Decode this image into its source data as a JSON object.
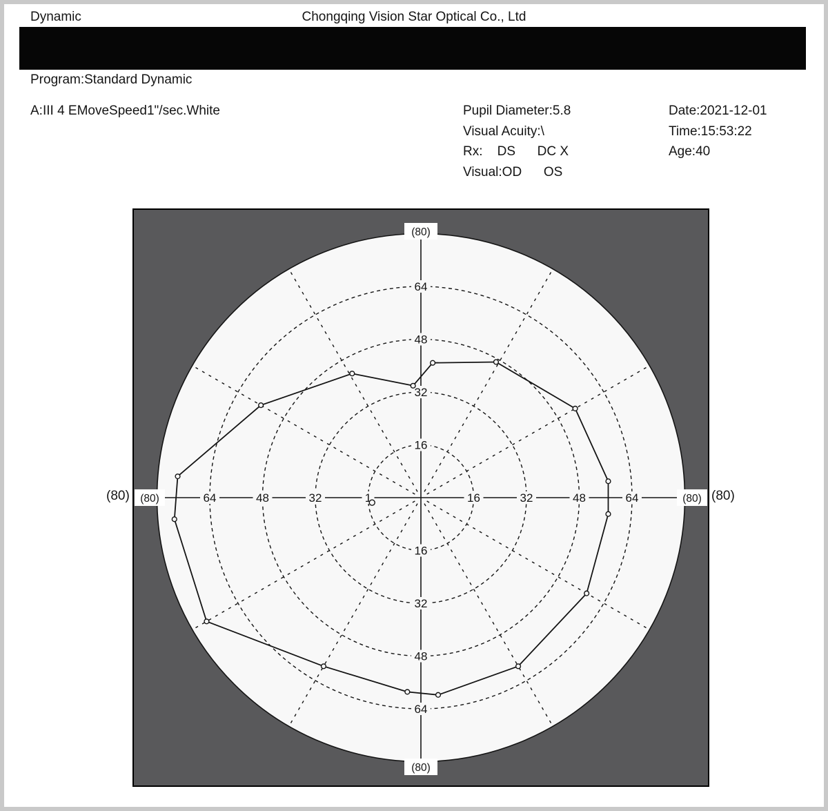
{
  "header": {
    "mode": "Dynamic",
    "company": "Chongqing Vision Star Optical Co., Ltd"
  },
  "program_line": "Program:Standard Dynamic",
  "parameters_line": "A:III 4 EMoveSpeed1\"/sec.White",
  "patient_info": {
    "pupil_diameter": "Pupil Diameter:5.8",
    "visual_acuity": "Visual Acuity:\\",
    "rx_line": "Rx:    DS      DC X",
    "visual_line": "Visual:OD      OS",
    "date": "Date:2021-12-01",
    "time": "Time:15:53:22",
    "age": "Age:40"
  },
  "chart_data": {
    "type": "polar-isopter",
    "description": "Dynamic perimetry visual field isopter plot",
    "ring_radii_deg": [
      16,
      32,
      48,
      64
    ],
    "outer_radius_deg": 80,
    "outer_edge_label": "(80)",
    "left_outer_label": "(80)",
    "right_outer_label": "(80)",
    "radial_lines_deg": [
      30,
      60,
      120,
      150,
      210,
      240,
      300,
      330
    ],
    "ring_label_texts": [
      "16",
      "32",
      "48",
      "64"
    ],
    "left_16_display": "1",
    "isopter_points_polar_deg": [
      [
        85,
        41
      ],
      [
        61,
        47
      ],
      [
        30,
        54
      ],
      [
        5,
        57
      ],
      [
        -5,
        57
      ],
      [
        -30,
        58
      ],
      [
        -60,
        59
      ],
      [
        -85,
        60
      ],
      [
        -94,
        59
      ],
      [
        -120,
        59
      ],
      [
        -150,
        75
      ],
      [
        -175,
        75
      ],
      [
        175,
        74
      ],
      [
        150,
        56
      ],
      [
        119,
        43
      ],
      [
        94,
        34
      ]
    ],
    "extra_marker_offset_deg": [
      -14.8,
      1.5
    ],
    "colors": {
      "panel": "#59595b",
      "field": "#f8f8f8",
      "line": "#141414"
    }
  }
}
